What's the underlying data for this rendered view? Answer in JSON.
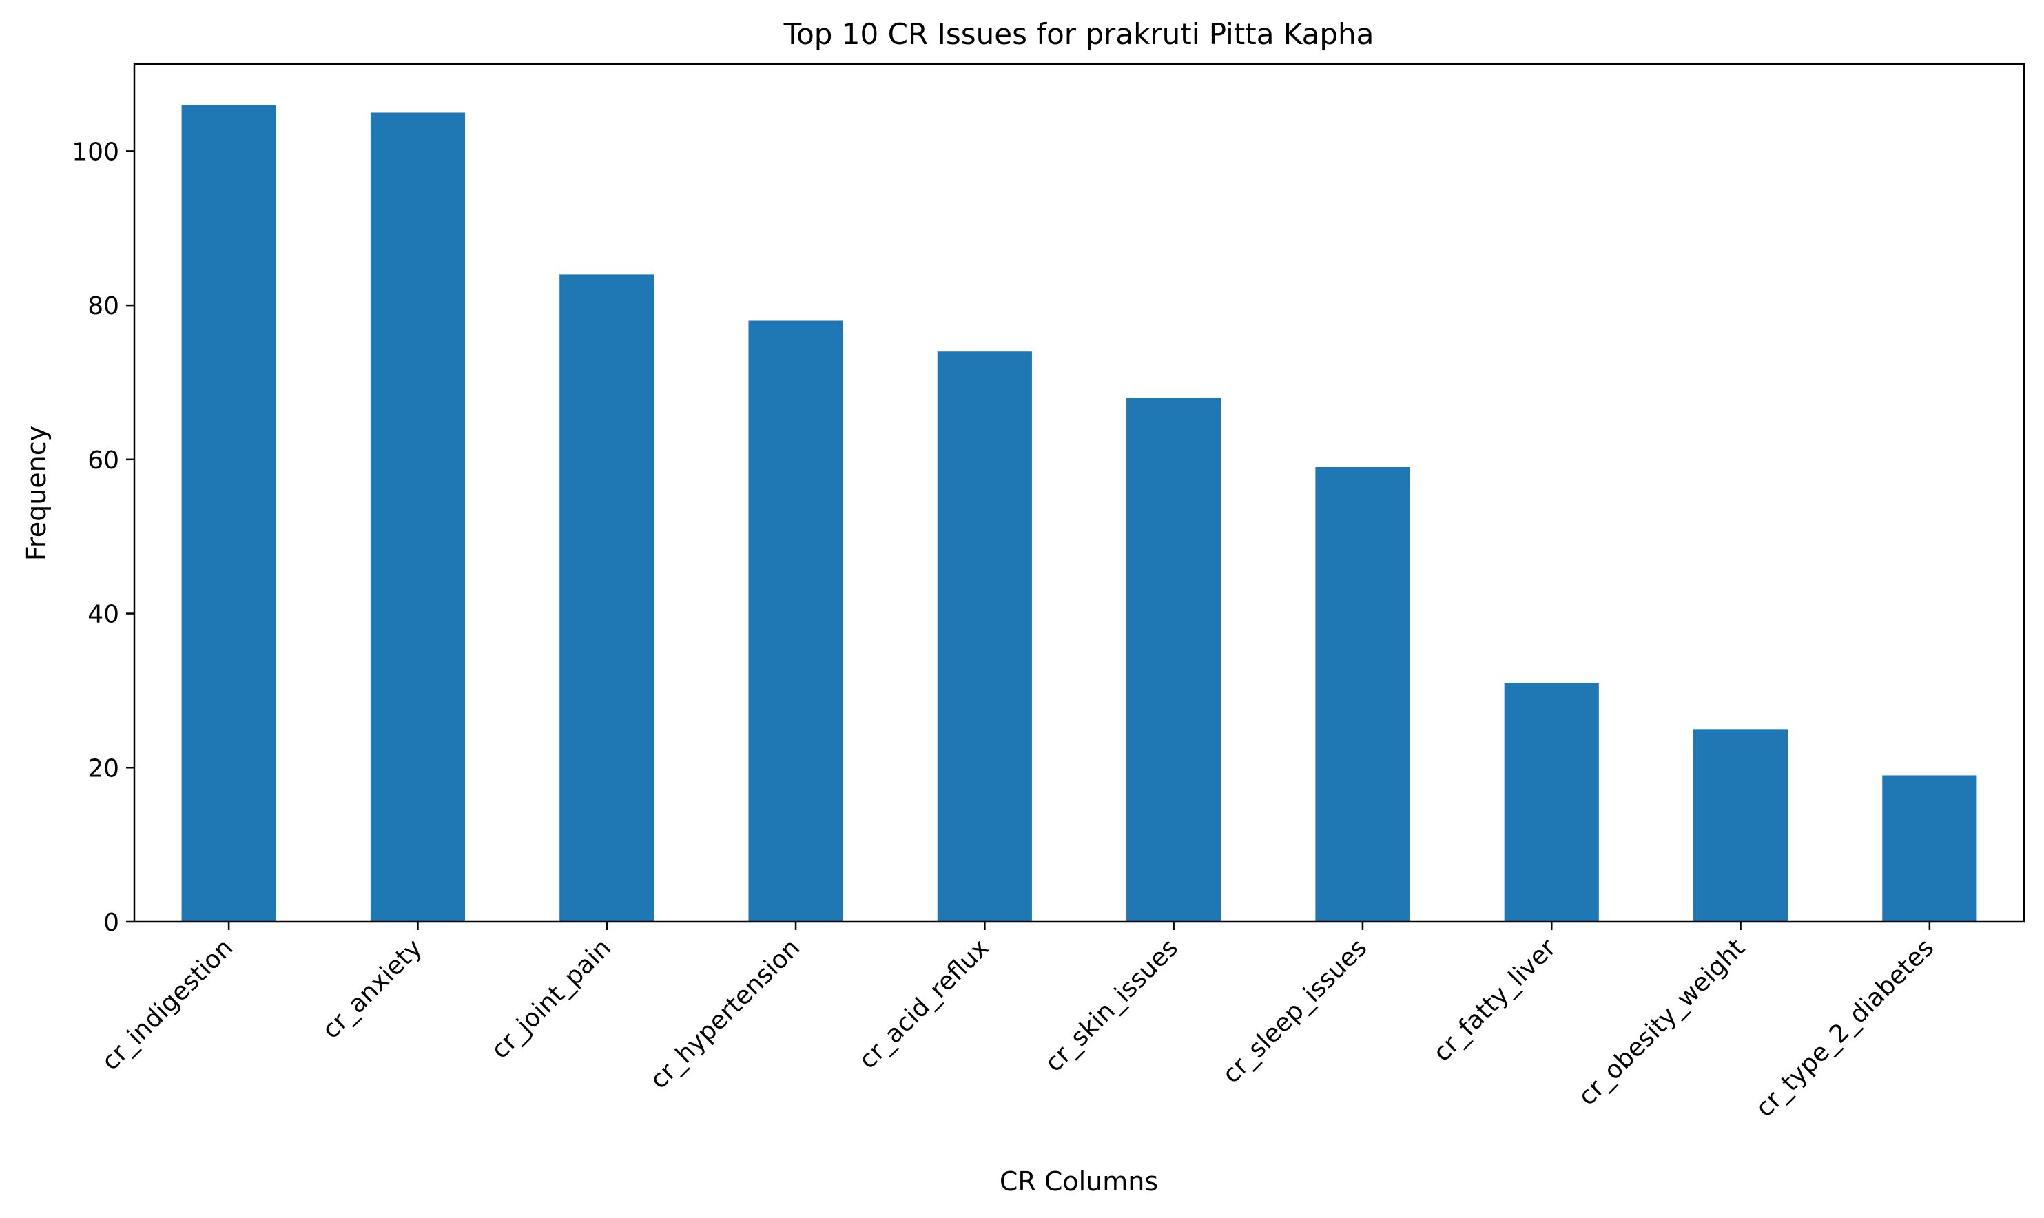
{
  "chart_data": {
    "type": "bar",
    "title": "Top 10 CR Issues for prakruti Pitta Kapha",
    "xlabel": "CR Columns",
    "ylabel": "Frequency",
    "categories": [
      "cr_indigestion",
      "cr_anxiety",
      "cr_joint_pain",
      "cr_hypertension",
      "cr_acid_reflux",
      "cr_skin_issues",
      "cr_sleep_issues",
      "cr_fatty_liver",
      "cr_obesity_weight",
      "cr_type_2_diabetes"
    ],
    "values": [
      106,
      105,
      84,
      78,
      74,
      68,
      59,
      31,
      25,
      19
    ],
    "ylim": [
      0,
      111.3
    ],
    "yticks": [
      0,
      20,
      40,
      60,
      80,
      100
    ],
    "bar_color": "#1f77b4",
    "grid": false,
    "legend": "none"
  }
}
